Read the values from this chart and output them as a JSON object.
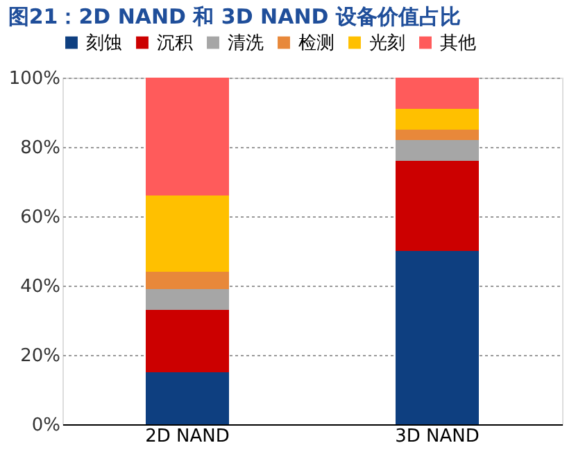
{
  "chart_data": {
    "type": "bar",
    "title": "图21：2D NAND 和 3D NAND 设备价值占比",
    "stacked": true,
    "categories": [
      "2D NAND",
      "3D NAND"
    ],
    "series": [
      {
        "name": "刻蚀",
        "color": "#0e3f80",
        "values": [
          15,
          50
        ]
      },
      {
        "name": "沉积",
        "color": "#cc0000",
        "values": [
          18,
          26
        ]
      },
      {
        "name": "清洗",
        "color": "#a6a6a6",
        "values": [
          6,
          6
        ]
      },
      {
        "name": "检测",
        "color": "#e8883a",
        "values": [
          5,
          3
        ]
      },
      {
        "name": "光刻",
        "color": "#ffc000",
        "values": [
          22,
          6
        ]
      },
      {
        "name": "其他",
        "color": "#ff5b5b",
        "values": [
          34,
          9
        ]
      }
    ],
    "ylim": [
      0,
      100
    ],
    "yticks": [
      {
        "value": 0,
        "label": "0%"
      },
      {
        "value": 20,
        "label": "20%"
      },
      {
        "value": 40,
        "label": "40%"
      },
      {
        "value": 60,
        "label": "60%"
      },
      {
        "value": 80,
        "label": "80%"
      },
      {
        "value": 100,
        "label": "100%"
      }
    ],
    "grid": "y",
    "legend": "top"
  }
}
